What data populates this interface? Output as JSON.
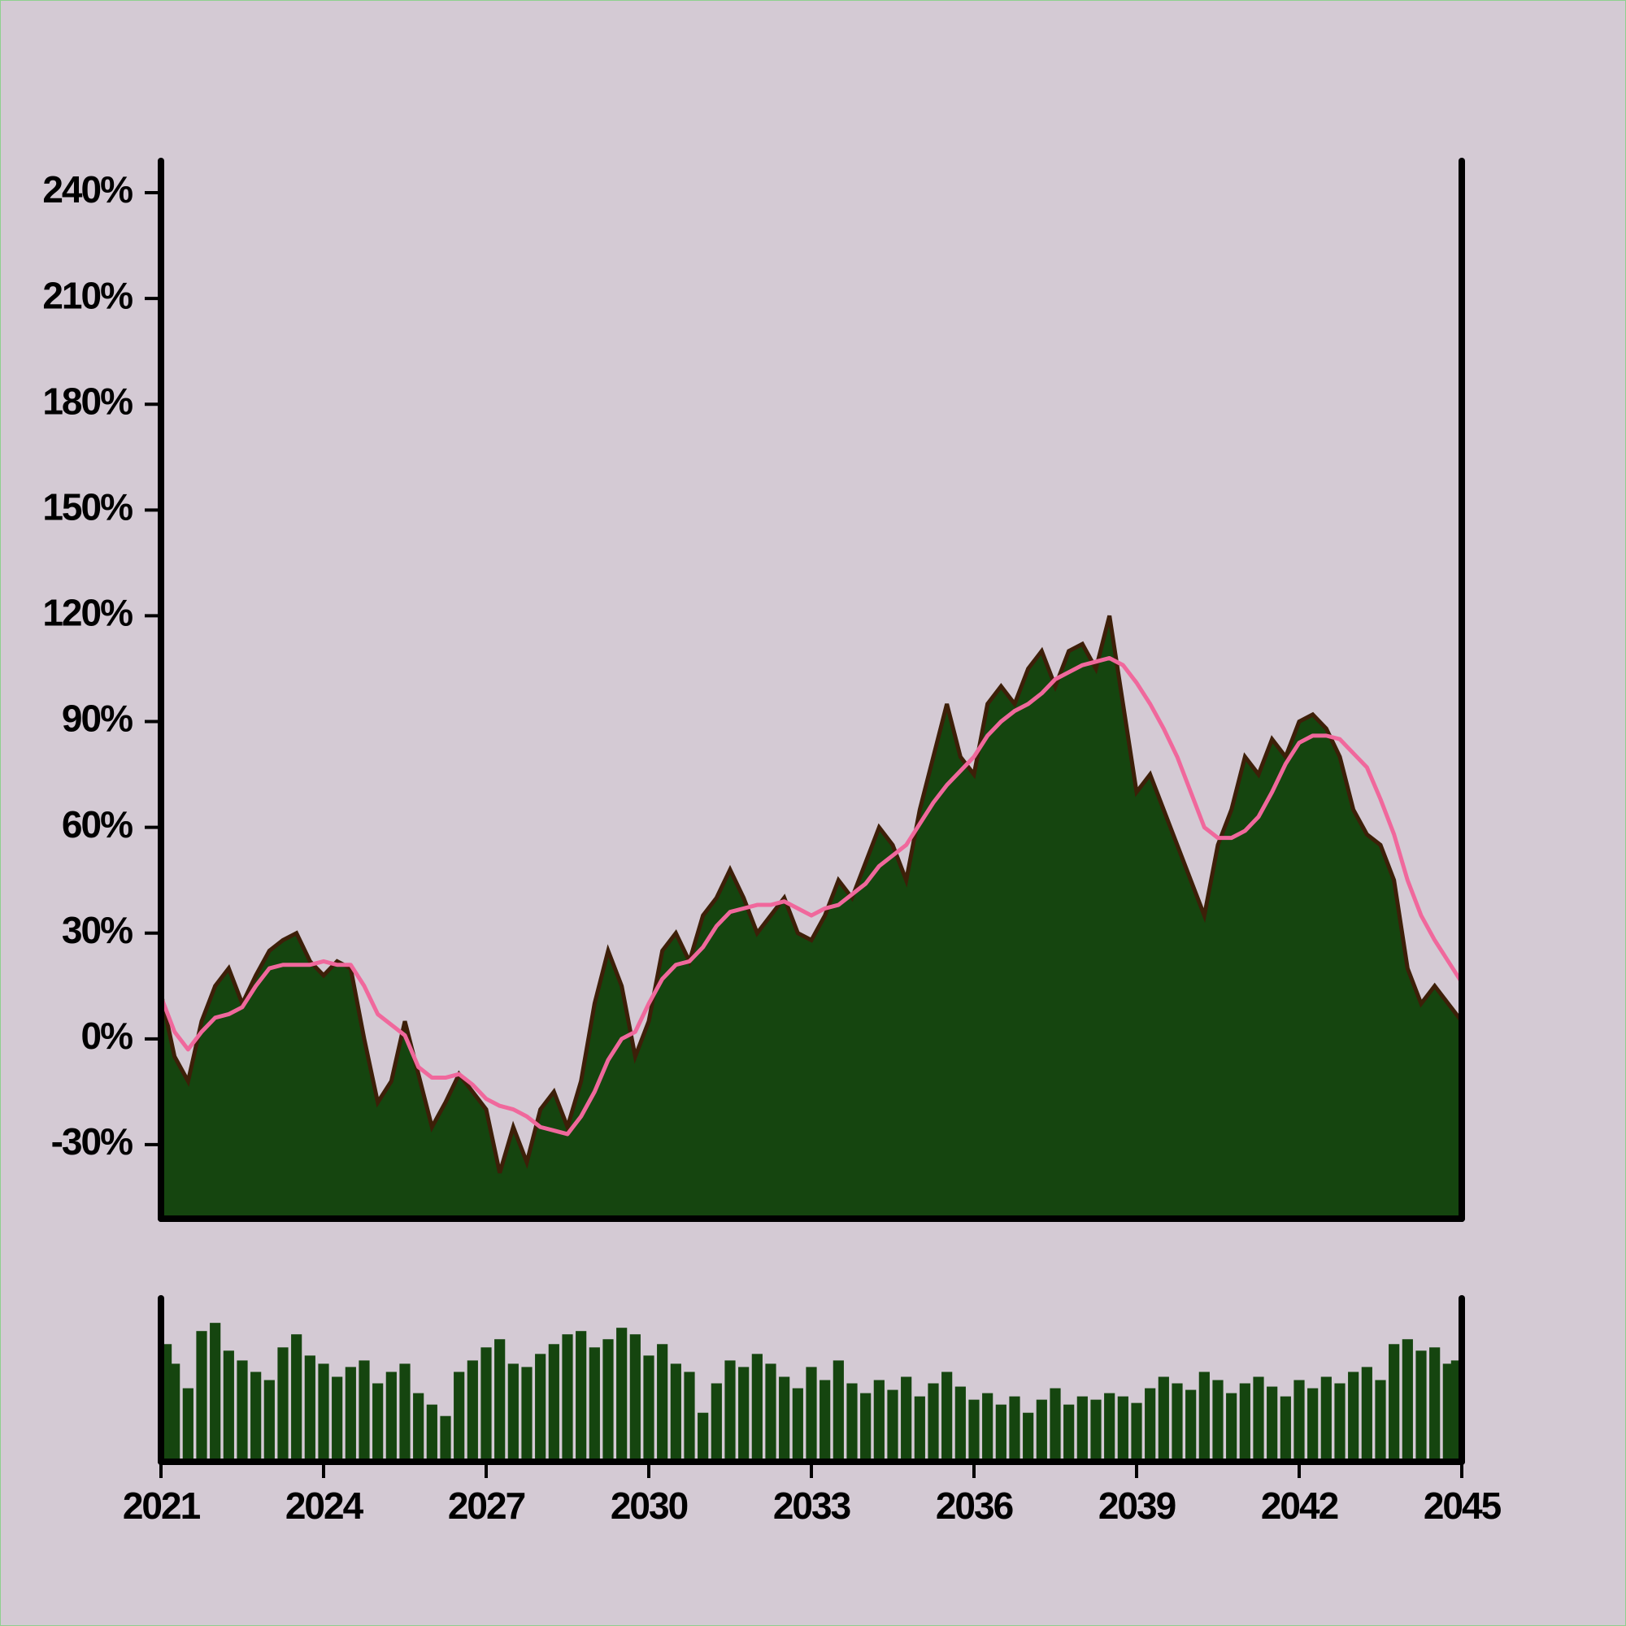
{
  "chart_data": [
    {
      "type": "area",
      "x": [
        2021,
        2021.25,
        2021.5,
        2021.75,
        2022,
        2022.25,
        2022.5,
        2022.75,
        2023,
        2023.25,
        2023.5,
        2023.75,
        2024,
        2024.25,
        2024.5,
        2024.75,
        2025,
        2025.25,
        2025.5,
        2025.75,
        2026,
        2026.25,
        2026.5,
        2026.75,
        2027,
        2027.25,
        2027.5,
        2027.75,
        2028,
        2028.25,
        2028.5,
        2028.75,
        2029,
        2029.25,
        2029.5,
        2029.75,
        2030,
        2030.25,
        2030.5,
        2030.75,
        2031,
        2031.25,
        2031.5,
        2031.75,
        2032,
        2032.25,
        2032.5,
        2032.75,
        2033,
        2033.25,
        2033.5,
        2033.75,
        2034,
        2034.25,
        2034.5,
        2034.75,
        2035,
        2035.25,
        2035.5,
        2035.75,
        2036,
        2036.25,
        2036.5,
        2036.75,
        2037,
        2037.25,
        2037.5,
        2037.75,
        2038,
        2038.25,
        2038.5,
        2038.75,
        2039,
        2039.25,
        2039.5,
        2039.75,
        2040,
        2040.25,
        2040.5,
        2040.75,
        2041,
        2041.25,
        2041.5,
        2041.75,
        2042,
        2042.25,
        2042.5,
        2042.75,
        2043,
        2043.25,
        2043.5,
        2043.75,
        2044,
        2044.25,
        2044.5,
        2044.75,
        2045
      ],
      "series": [
        {
          "type": "area",
          "color": "#15450f",
          "edge_color": "#3d1f08",
          "values": [
            13,
            -5,
            -12,
            5,
            15,
            20,
            10,
            18,
            25,
            28,
            30,
            22,
            18,
            22,
            20,
            0,
            -18,
            -12,
            5,
            -10,
            -25,
            -18,
            -10,
            -15,
            -20,
            -38,
            -25,
            -35,
            -20,
            -15,
            -25,
            -12,
            10,
            25,
            15,
            -5,
            5,
            25,
            30,
            22,
            35,
            40,
            48,
            40,
            30,
            35,
            40,
            30,
            28,
            35,
            45,
            40,
            50,
            60,
            55,
            45,
            65,
            80,
            95,
            80,
            75,
            95,
            100,
            95,
            105,
            110,
            100,
            110,
            112,
            105,
            120,
            95,
            70,
            75,
            65,
            55,
            45,
            35,
            55,
            65,
            80,
            75,
            85,
            80,
            90,
            92,
            88,
            80,
            65,
            58,
            55,
            45,
            20,
            10,
            15,
            10,
            5
          ]
        },
        {
          "type": "line",
          "color": "#f0689c",
          "values": [
            12,
            2,
            -3,
            2,
            6,
            7,
            9,
            15,
            20,
            21,
            21,
            21,
            22,
            21,
            21,
            15,
            7,
            4,
            1,
            -8,
            -11,
            -11,
            -10,
            -13,
            -17,
            -19,
            -20,
            -22,
            -25,
            -26,
            -27,
            -22,
            -15,
            -6,
            0,
            2,
            10,
            17,
            21,
            22,
            26,
            32,
            36,
            37,
            38,
            38,
            39,
            37,
            35,
            37,
            38,
            41,
            44,
            49,
            52,
            55,
            61,
            67,
            72,
            76,
            80,
            86,
            90,
            93,
            95,
            98,
            102,
            104,
            106,
            107,
            108,
            106,
            101,
            95,
            88,
            80,
            70,
            60,
            57,
            57,
            59,
            63,
            70,
            78,
            84,
            86,
            86,
            85,
            81,
            77,
            68,
            58,
            45,
            35,
            28,
            22,
            16
          ]
        }
      ],
      "xlim": [
        2021,
        2045
      ],
      "xticks": [
        2021,
        2024,
        2027,
        2030,
        2033,
        2036,
        2039,
        2042,
        2045
      ],
      "ylim": [
        -51,
        249
      ],
      "yticks": [
        {
          "value": -30,
          "label": "-30%"
        },
        {
          "value": 0,
          "label": "0%"
        },
        {
          "value": 30,
          "label": "30%"
        },
        {
          "value": 60,
          "label": "60%"
        },
        {
          "value": 90,
          "label": "90%"
        },
        {
          "value": 120,
          "label": "120%"
        },
        {
          "value": 150,
          "label": "150%"
        },
        {
          "value": 180,
          "label": "180%"
        },
        {
          "value": 210,
          "label": "210%"
        },
        {
          "value": 240,
          "label": "240%"
        }
      ]
    },
    {
      "type": "bar",
      "color": "#15450f",
      "values": [
        72,
        60,
        45,
        80,
        85,
        68,
        62,
        55,
        50,
        70,
        78,
        65,
        60,
        52,
        58,
        62,
        48,
        55,
        60,
        42,
        35,
        28,
        55,
        62,
        70,
        75,
        60,
        58,
        66,
        72,
        78,
        80,
        70,
        75,
        82,
        78,
        65,
        72,
        60,
        55,
        30,
        48,
        62,
        58,
        66,
        60,
        52,
        45,
        58,
        50,
        62,
        48,
        42,
        50,
        44,
        52,
        40,
        48,
        55,
        46,
        38,
        42,
        35,
        40,
        30,
        38,
        45,
        35,
        40,
        38,
        42,
        40,
        36,
        45,
        52,
        48,
        44,
        55,
        50,
        42,
        48,
        52,
        46,
        40,
        50,
        45,
        52,
        48,
        55,
        58,
        50,
        72,
        75,
        68,
        70,
        60,
        62
      ],
      "ylim": [
        0,
        100
      ]
    }
  ]
}
